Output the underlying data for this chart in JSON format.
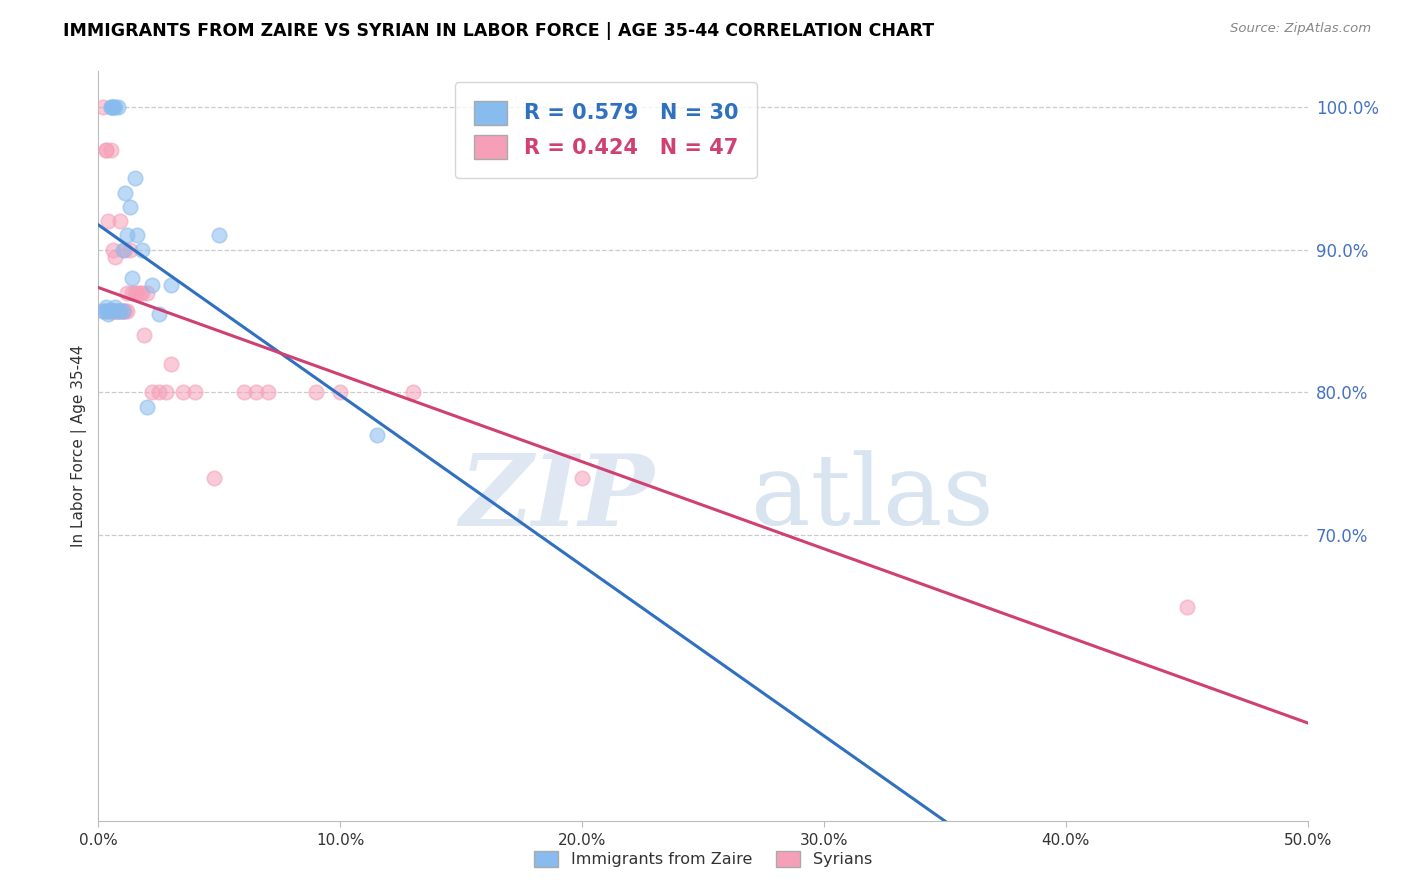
{
  "title": "IMMIGRANTS FROM ZAIRE VS SYRIAN IN LABOR FORCE | AGE 35-44 CORRELATION CHART",
  "source": "Source: ZipAtlas.com",
  "ylabel": "In Labor Force | Age 35-44",
  "zaire_R": 0.579,
  "zaire_N": 30,
  "syrian_R": 0.424,
  "syrian_N": 47,
  "xmin": 0.0,
  "xmax": 0.5,
  "ymin": 0.5,
  "ymax": 1.025,
  "yticks": [
    0.7,
    0.8,
    0.9,
    1.0
  ],
  "yticklabels": [
    "70.0%",
    "80.0%",
    "90.0%",
    "100.0%"
  ],
  "xticks": [
    0.0,
    0.1,
    0.2,
    0.3,
    0.4,
    0.5
  ],
  "xticklabels": [
    "0.0%",
    "10.0%",
    "20.0%",
    "30.0%",
    "40.0%",
    "50.0%"
  ],
  "zaire_color": "#88bbee",
  "syrian_color": "#f5a0b8",
  "zaire_line_color": "#3070c0",
  "syrian_line_color": "#d04070",
  "zaire_points_x": [
    0.002,
    0.003,
    0.003,
    0.004,
    0.004,
    0.005,
    0.005,
    0.005,
    0.006,
    0.006,
    0.007,
    0.007,
    0.008,
    0.008,
    0.009,
    0.01,
    0.01,
    0.011,
    0.012,
    0.013,
    0.014,
    0.015,
    0.016,
    0.018,
    0.02,
    0.022,
    0.025,
    0.03,
    0.05,
    0.115
  ],
  "zaire_points_y": [
    0.857,
    0.857,
    0.86,
    0.855,
    0.857,
    0.858,
    1.0,
    1.0,
    1.0,
    1.0,
    0.86,
    1.0,
    0.857,
    1.0,
    0.857,
    0.9,
    0.857,
    0.94,
    0.91,
    0.93,
    0.88,
    0.95,
    0.91,
    0.9,
    0.79,
    0.875,
    0.855,
    0.875,
    0.91,
    0.77
  ],
  "syrian_points_x": [
    0.002,
    0.002,
    0.003,
    0.003,
    0.004,
    0.004,
    0.005,
    0.005,
    0.006,
    0.006,
    0.006,
    0.007,
    0.007,
    0.007,
    0.008,
    0.008,
    0.009,
    0.009,
    0.01,
    0.01,
    0.011,
    0.011,
    0.012,
    0.012,
    0.013,
    0.014,
    0.015,
    0.016,
    0.017,
    0.018,
    0.019,
    0.02,
    0.022,
    0.025,
    0.028,
    0.03,
    0.035,
    0.04,
    0.048,
    0.06,
    0.065,
    0.07,
    0.09,
    0.1,
    0.13,
    0.2,
    0.45
  ],
  "syrian_points_y": [
    1.0,
    0.857,
    0.97,
    0.97,
    0.857,
    0.92,
    0.97,
    0.857,
    0.857,
    0.857,
    0.9,
    0.857,
    0.857,
    0.895,
    0.857,
    0.857,
    0.857,
    0.92,
    0.857,
    0.857,
    0.857,
    0.9,
    0.857,
    0.87,
    0.9,
    0.87,
    0.87,
    0.87,
    0.87,
    0.87,
    0.84,
    0.87,
    0.8,
    0.8,
    0.8,
    0.82,
    0.8,
    0.8,
    0.74,
    0.8,
    0.8,
    0.8,
    0.8,
    0.8,
    0.8,
    0.74,
    0.65
  ]
}
